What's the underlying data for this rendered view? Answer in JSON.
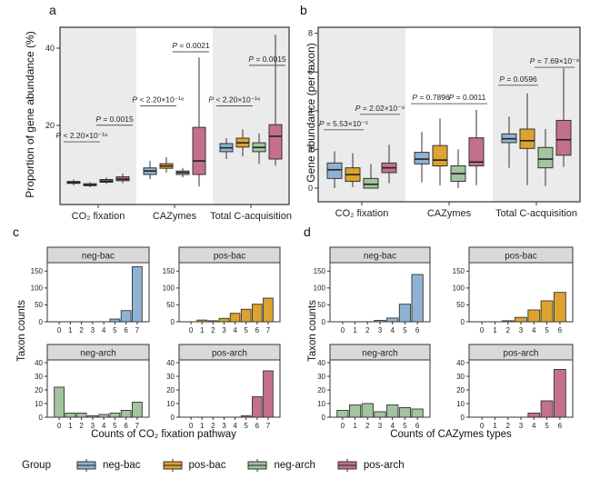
{
  "figure": {
    "panel_labels": {
      "a": "a",
      "b": "b",
      "c": "c",
      "d": "d"
    },
    "legend_position": "bottom"
  },
  "colors": {
    "neg-bac": "#8fb2d2",
    "pos-bac": "#dda32f",
    "neg-arch": "#a2c49e",
    "pos-arch": "#c4708a",
    "band": "#ebebeb",
    "strip": "#d9d9d9",
    "stroke": "#333333"
  },
  "legend": {
    "title": "Group",
    "items": [
      {
        "label": "neg-bac",
        "color": "#8fb2d2"
      },
      {
        "label": "pos-bac",
        "color": "#dda32f"
      },
      {
        "label": "neg-arch",
        "color": "#a2c49e"
      },
      {
        "label": "pos-arch",
        "color": "#c4708a"
      }
    ]
  },
  "chart_data": [
    {
      "id": "a",
      "type": "boxplot",
      "ylabel": "Proportion of gene abundance (%)",
      "yticks": [
        20,
        40
      ],
      "ylim": [
        0,
        45
      ],
      "categories": [
        "CO₂ fixation",
        "CAZymes",
        "Total C-acquisition"
      ],
      "groups": [
        "neg-bac",
        "pos-bac",
        "neg-arch",
        "pos-arch"
      ],
      "boxes": [
        [
          [
            4.5,
            5.0,
            5.2,
            5.5,
            6.0
          ],
          [
            4.0,
            4.4,
            4.6,
            4.9,
            5.3
          ],
          [
            4.8,
            5.3,
            5.6,
            6.0,
            6.5
          ],
          [
            5.1,
            5.7,
            6.1,
            6.7,
            7.5
          ]
        ],
        [
          [
            6.1,
            7.3,
            8.2,
            9.0,
            10.8
          ],
          [
            7.8,
            8.9,
            9.5,
            10.1,
            11.8
          ],
          [
            6.6,
            7.3,
            7.8,
            8.2,
            9.0
          ],
          [
            4.2,
            7.3,
            10.8,
            19.5,
            37.6
          ]
        ],
        [
          [
            11.3,
            13.2,
            14.2,
            15.3,
            16.7
          ],
          [
            12.0,
            14.4,
            15.5,
            16.7,
            19.0
          ],
          [
            10.1,
            13.2,
            14.3,
            15.5,
            17.9
          ],
          [
            9.6,
            11.3,
            17.2,
            20.2,
            43.5
          ]
        ]
      ],
      "annotations": [
        {
          "category": 0,
          "pair": "left",
          "text": "P < 2.20×10⁻¹⁶",
          "y": 16.7
        },
        {
          "category": 0,
          "pair": "right",
          "text": "P = 0.0015",
          "y": 21.0
        },
        {
          "category": 1,
          "pair": "left",
          "text": "P < 2.20×10⁻¹⁶",
          "y": 26.0
        },
        {
          "category": 1,
          "pair": "right",
          "text": "P = 0.0021",
          "y": 40.0
        },
        {
          "category": 2,
          "pair": "left",
          "text": "P < 2.20×10⁻¹⁶",
          "y": 26.0
        },
        {
          "category": 2,
          "pair": "right",
          "text": "P = 0.0015",
          "y": 36.5
        }
      ]
    },
    {
      "id": "b",
      "type": "boxplot",
      "ylabel": "Gene abundance (per taxon)",
      "yticks": [
        0,
        2,
        4,
        6,
        8
      ],
      "ylim": [
        0,
        8.5
      ],
      "categories": [
        "CO₂ fixation",
        "CAZymes",
        "Total C-acquisition"
      ],
      "groups": [
        "neg-bac",
        "pos-bac",
        "neg-arch",
        "pos-arch"
      ],
      "boxes": [
        [
          [
            0.0,
            0.5,
            0.95,
            1.3,
            1.9
          ],
          [
            0.05,
            0.35,
            0.7,
            1.05,
            1.8
          ],
          [
            0.0,
            0.0,
            0.2,
            0.5,
            1.25
          ],
          [
            0.25,
            0.8,
            1.05,
            1.3,
            2.25
          ]
        ],
        [
          [
            0.3,
            1.25,
            1.5,
            1.85,
            2.9
          ],
          [
            0.15,
            1.15,
            1.45,
            2.2,
            3.6
          ],
          [
            0.0,
            0.35,
            0.75,
            1.15,
            2.0
          ],
          [
            0.15,
            1.15,
            1.35,
            2.6,
            4.05
          ]
        ],
        [
          [
            1.05,
            2.35,
            2.55,
            2.8,
            3.7
          ],
          [
            0.15,
            2.05,
            2.45,
            3.05,
            4.9
          ],
          [
            0.1,
            1.05,
            1.5,
            2.1,
            3.05
          ],
          [
            1.1,
            1.7,
            2.5,
            3.5,
            6.2
          ]
        ]
      ],
      "annotations": [
        {
          "category": 0,
          "pair": "left",
          "text": "P = 5.53×10⁻⁵",
          "y": 3.2
        },
        {
          "category": 0,
          "pair": "right",
          "text": "P = 2.02×10⁻⁸",
          "y": 4.0
        },
        {
          "category": 1,
          "pair": "left",
          "text": "P = 0.7896",
          "y": 4.55
        },
        {
          "category": 1,
          "pair": "right",
          "text": "P = 0.0011",
          "y": 4.55
        },
        {
          "category": 2,
          "pair": "left",
          "text": "P = 0.0596",
          "y": 5.5
        },
        {
          "category": 2,
          "pair": "right",
          "text": "P = 7.69×10⁻⁸",
          "y": 6.43
        }
      ]
    },
    {
      "id": "c",
      "type": "histogram",
      "ylabel": "Taxon counts",
      "xlabel": "Counts of CO₂ fixation pathway",
      "bins": [
        0,
        1,
        2,
        3,
        4,
        5,
        6,
        7
      ],
      "facets": [
        {
          "name": "neg-bac",
          "values": [
            0,
            0,
            0,
            0,
            0,
            8,
            33,
            163
          ],
          "yticks": [
            0,
            50,
            100,
            150
          ],
          "ymax": 175
        },
        {
          "name": "pos-bac",
          "values": [
            0,
            5,
            3,
            10,
            25,
            37,
            52,
            70
          ],
          "yticks": [
            0,
            50,
            100,
            150
          ],
          "ymax": 175
        },
        {
          "name": "neg-arch",
          "values": [
            22,
            3,
            3,
            1,
            2,
            3,
            5,
            11
          ],
          "yticks": [
            0,
            10,
            20,
            30,
            40
          ],
          "ymax": 42
        },
        {
          "name": "pos-arch",
          "values": [
            0,
            0,
            0,
            0,
            0,
            1,
            15,
            34
          ],
          "yticks": [
            0,
            10,
            20,
            30,
            40
          ],
          "ymax": 42
        }
      ]
    },
    {
      "id": "d",
      "type": "histogram",
      "ylabel": "Taxon counts",
      "xlabel": "Counts of CAZymes types",
      "bins": [
        0,
        1,
        2,
        3,
        4,
        5,
        6
      ],
      "facets": [
        {
          "name": "neg-bac",
          "values": [
            0,
            0,
            0,
            4,
            11,
            52,
            140
          ],
          "yticks": [
            0,
            50,
            100,
            150
          ],
          "ymax": 175
        },
        {
          "name": "pos-bac",
          "values": [
            0,
            0,
            3,
            13,
            35,
            62,
            87
          ],
          "yticks": [
            0,
            50,
            100,
            150
          ],
          "ymax": 175
        },
        {
          "name": "neg-arch",
          "values": [
            5,
            9,
            10,
            4,
            9,
            7,
            6
          ],
          "yticks": [
            0,
            10,
            20,
            30,
            40
          ],
          "ymax": 42
        },
        {
          "name": "pos-arch",
          "values": [
            0,
            0,
            0,
            0,
            3,
            12,
            35
          ],
          "yticks": [
            0,
            10,
            20,
            30,
            40
          ],
          "ymax": 42
        }
      ]
    }
  ]
}
